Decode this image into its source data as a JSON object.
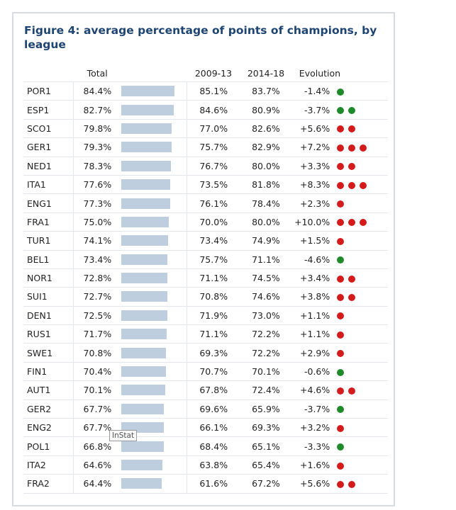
{
  "title": "Figure 4: average percentage of points of champions, by league",
  "columns": {
    "total": "Total",
    "p1": "2009-13",
    "p2": "2014-18",
    "evolution": "Evolution"
  },
  "tooltip": "InStat",
  "colors": {
    "bar": "#bfcedf",
    "up": "#d31b1b",
    "down": "#1f8a2a",
    "title": "#1e4471"
  },
  "chart_data": {
    "type": "table",
    "title": "Figure 4: average percentage of points of champions, by league",
    "bar_scale_max": 84.4,
    "rows": [
      {
        "league": "POR1",
        "total": "84.4%",
        "total_value": 84.4,
        "p1": "85.1%",
        "p2": "83.7%",
        "evolution": "-1.4%",
        "dots": 1,
        "dot_color": "green"
      },
      {
        "league": "ESP1",
        "total": "82.7%",
        "total_value": 82.7,
        "p1": "84.6%",
        "p2": "80.9%",
        "evolution": "-3.7%",
        "dots": 2,
        "dot_color": "green"
      },
      {
        "league": "SCO1",
        "total": "79.8%",
        "total_value": 79.8,
        "p1": "77.0%",
        "p2": "82.6%",
        "evolution": "+5.6%",
        "dots": 2,
        "dot_color": "red"
      },
      {
        "league": "GER1",
        "total": "79.3%",
        "total_value": 79.3,
        "p1": "75.7%",
        "p2": "82.9%",
        "evolution": "+7.2%",
        "dots": 3,
        "dot_color": "red"
      },
      {
        "league": "NED1",
        "total": "78.3%",
        "total_value": 78.3,
        "p1": "76.7%",
        "p2": "80.0%",
        "evolution": "+3.3%",
        "dots": 2,
        "dot_color": "red"
      },
      {
        "league": "ITA1",
        "total": "77.6%",
        "total_value": 77.6,
        "p1": "73.5%",
        "p2": "81.8%",
        "evolution": "+8.3%",
        "dots": 3,
        "dot_color": "red"
      },
      {
        "league": "ENG1",
        "total": "77.3%",
        "total_value": 77.3,
        "p1": "76.1%",
        "p2": "78.4%",
        "evolution": "+2.3%",
        "dots": 1,
        "dot_color": "red"
      },
      {
        "league": "FRA1",
        "total": "75.0%",
        "total_value": 75.0,
        "p1": "70.0%",
        "p2": "80.0%",
        "evolution": "+10.0%",
        "dots": 3,
        "dot_color": "red"
      },
      {
        "league": "TUR1",
        "total": "74.1%",
        "total_value": 74.1,
        "p1": "73.4%",
        "p2": "74.9%",
        "evolution": "+1.5%",
        "dots": 1,
        "dot_color": "red"
      },
      {
        "league": "BEL1",
        "total": "73.4%",
        "total_value": 73.4,
        "p1": "75.7%",
        "p2": "71.1%",
        "evolution": "-4.6%",
        "dots": 1,
        "dot_color": "green"
      },
      {
        "league": "NOR1",
        "total": "72.8%",
        "total_value": 72.8,
        "p1": "71.1%",
        "p2": "74.5%",
        "evolution": "+3.4%",
        "dots": 2,
        "dot_color": "red"
      },
      {
        "league": "SUI1",
        "total": "72.7%",
        "total_value": 72.7,
        "p1": "70.8%",
        "p2": "74.6%",
        "evolution": "+3.8%",
        "dots": 2,
        "dot_color": "red"
      },
      {
        "league": "DEN1",
        "total": "72.5%",
        "total_value": 72.5,
        "p1": "71.9%",
        "p2": "73.0%",
        "evolution": "+1.1%",
        "dots": 1,
        "dot_color": "red"
      },
      {
        "league": "RUS1",
        "total": "71.7%",
        "total_value": 71.7,
        "p1": "71.1%",
        "p2": "72.2%",
        "evolution": "+1.1%",
        "dots": 1,
        "dot_color": "red"
      },
      {
        "league": "SWE1",
        "total": "70.8%",
        "total_value": 70.8,
        "p1": "69.3%",
        "p2": "72.2%",
        "evolution": "+2.9%",
        "dots": 1,
        "dot_color": "red"
      },
      {
        "league": "FIN1",
        "total": "70.4%",
        "total_value": 70.4,
        "p1": "70.7%",
        "p2": "70.1%",
        "evolution": "-0.6%",
        "dots": 1,
        "dot_color": "green"
      },
      {
        "league": "AUT1",
        "total": "70.1%",
        "total_value": 70.1,
        "p1": "67.8%",
        "p2": "72.4%",
        "evolution": "+4.6%",
        "dots": 2,
        "dot_color": "red"
      },
      {
        "league": "GER2",
        "total": "67.7%",
        "total_value": 67.7,
        "p1": "69.6%",
        "p2": "65.9%",
        "evolution": "-3.7%",
        "dots": 1,
        "dot_color": "green"
      },
      {
        "league": "ENG2",
        "total": "67.7%",
        "total_value": 67.7,
        "p1": "66.1%",
        "p2": "69.3%",
        "evolution": "+3.2%",
        "dots": 1,
        "dot_color": "red"
      },
      {
        "league": "POL1",
        "total": "66.8%",
        "total_value": 66.8,
        "p1": "68.4%",
        "p2": "65.1%",
        "evolution": "-3.3%",
        "dots": 1,
        "dot_color": "green"
      },
      {
        "league": "ITA2",
        "total": "64.6%",
        "total_value": 64.6,
        "p1": "63.8%",
        "p2": "65.4%",
        "evolution": "+1.6%",
        "dots": 1,
        "dot_color": "red"
      },
      {
        "league": "FRA2",
        "total": "64.4%",
        "total_value": 64.4,
        "p1": "61.6%",
        "p2": "67.2%",
        "evolution": "+5.6%",
        "dots": 2,
        "dot_color": "red"
      }
    ]
  }
}
